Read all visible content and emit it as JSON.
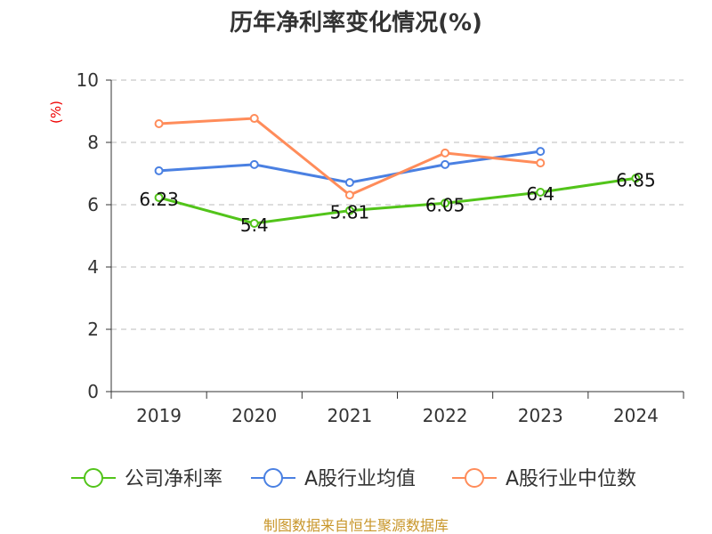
{
  "chart_data": {
    "type": "line",
    "title": "历年净利率变化情况(%)",
    "ylabel": "(%)",
    "categories": [
      "2019",
      "2020",
      "2021",
      "2022",
      "2023",
      "2024"
    ],
    "ylim": [
      0,
      10
    ],
    "yticks": [
      0,
      2,
      4,
      6,
      8,
      10
    ],
    "grid": true,
    "legend_position": "bottom",
    "series": [
      {
        "name": "公司净利率",
        "color": "#52c41a",
        "values": [
          6.23,
          5.4,
          5.81,
          6.05,
          6.4,
          6.85
        ],
        "labels": [
          "6.23",
          "5.4",
          "5.81",
          "6.05",
          "6.4",
          "6.85"
        ]
      },
      {
        "name": "A股行业均值",
        "color": "#4a80e2",
        "values": [
          7.09,
          7.29,
          6.71,
          7.29,
          7.71,
          null
        ]
      },
      {
        "name": "A股行业中位数",
        "color": "#ff8c5a",
        "values": [
          8.6,
          8.77,
          6.31,
          7.66,
          7.34,
          null
        ]
      }
    ]
  },
  "source": "制图数据来自恒生聚源数据库"
}
